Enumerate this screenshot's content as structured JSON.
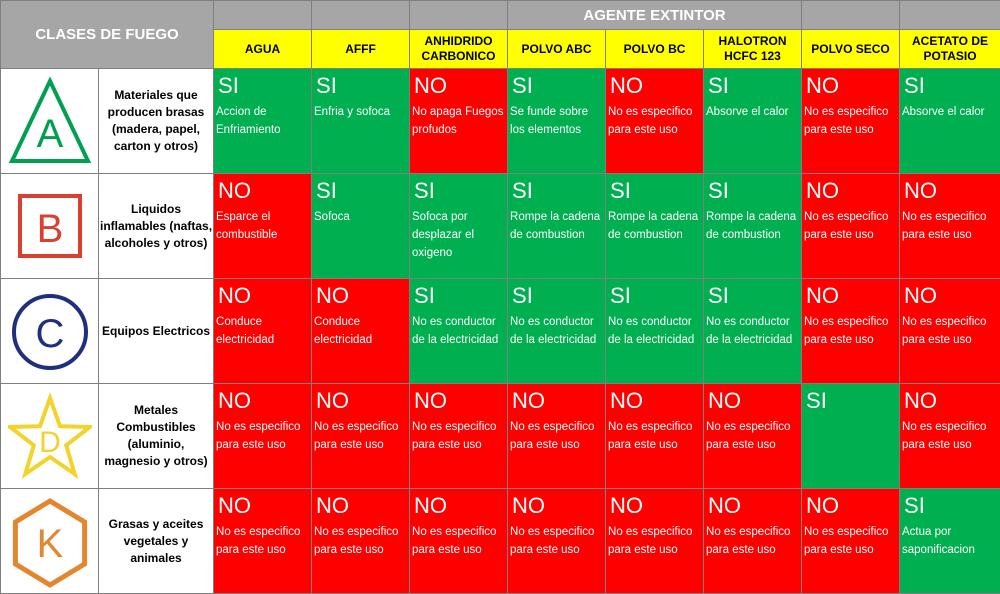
{
  "header": {
    "title": "CLASES DE FUEGO",
    "agent_title": "AGENTE EXTINTOR",
    "agents": [
      "AGUA",
      "AFFF",
      "ANHIDRIDO CARBONICO",
      "POLVO ABC",
      "POLVO BC",
      "HALOTRON HCFC 123",
      "POLVO SECO",
      "ACETATO DE POTASIO"
    ]
  },
  "rows": [
    {
      "letter": "A",
      "icon": "green-triangle-icon",
      "color": "#00a050",
      "description": "Materiales que producen brasas (madera, papel, carton y otros)",
      "cells": [
        {
          "v": "SI",
          "t": "Accion de Enfriamiento"
        },
        {
          "v": "SI",
          "t": "Enfria y sofoca"
        },
        {
          "v": "NO",
          "t": "No apaga Fuegos profudos"
        },
        {
          "v": "SI",
          "t": "Se funde sobre los elementos"
        },
        {
          "v": "NO",
          "t": "No es especifico para este uso"
        },
        {
          "v": "SI",
          "t": "Absorve el calor"
        },
        {
          "v": "NO",
          "t": "No es especifico para este uso"
        },
        {
          "v": "SI",
          "t": "Absorve el calor"
        }
      ]
    },
    {
      "letter": "B",
      "icon": "red-square-icon",
      "color": "#d94030",
      "description": "Liquidos inflamables (naftas, alcoholes y otros)",
      "cells": [
        {
          "v": "NO",
          "t": "Esparce el combustible"
        },
        {
          "v": "SI",
          "t": "Sofoca"
        },
        {
          "v": "SI",
          "t": "Sofoca por desplazar el oxigeno"
        },
        {
          "v": "SI",
          "t": "Rompe la cadena de combustion"
        },
        {
          "v": "SI",
          "t": "Rompe la cadena de combustion"
        },
        {
          "v": "SI",
          "t": "Rompe la cadena de combustion"
        },
        {
          "v": "NO",
          "t": "No es especifico para este uso"
        },
        {
          "v": "NO",
          "t": "No es especifico para este uso"
        }
      ]
    },
    {
      "letter": "C",
      "icon": "blue-circle-icon",
      "color": "#1f2f80",
      "description": "Equipos Electricos",
      "cells": [
        {
          "v": "NO",
          "t": "Conduce electricidad"
        },
        {
          "v": "NO",
          "t": "Conduce electricidad"
        },
        {
          "v": "SI",
          "t": "No es conductor de la electricidad"
        },
        {
          "v": "SI",
          "t": "No es conductor de la electricidad"
        },
        {
          "v": "SI",
          "t": "No es conductor de la electricidad"
        },
        {
          "v": "SI",
          "t": "No es conductor de la electricidad"
        },
        {
          "v": "NO",
          "t": "No es especifico para este uso"
        },
        {
          "v": "NO",
          "t": "No es especifico para este uso"
        }
      ]
    },
    {
      "letter": "D",
      "icon": "yellow-star-icon",
      "color": "#f2d22b",
      "description": "Metales Combustibles (aluminio, magnesio y otros)",
      "cells": [
        {
          "v": "NO",
          "t": "No es especifico para este uso"
        },
        {
          "v": "NO",
          "t": "No es especifico para este uso"
        },
        {
          "v": "NO",
          "t": "No es especifico para este uso"
        },
        {
          "v": "NO",
          "t": "No es especifico para este uso"
        },
        {
          "v": "NO",
          "t": "No es especifico para este uso"
        },
        {
          "v": "NO",
          "t": "No es especifico para este uso"
        },
        {
          "v": "SI",
          "t": ""
        },
        {
          "v": "NO",
          "t": "No es especifico para este uso"
        }
      ]
    },
    {
      "letter": "K",
      "icon": "orange-hexagon-icon",
      "color": "#e2862f",
      "description": "Grasas y aceites vegetales y animales",
      "cells": [
        {
          "v": "NO",
          "t": "No es especifico para este uso"
        },
        {
          "v": "NO",
          "t": "No es especifico para este uso"
        },
        {
          "v": "NO",
          "t": "No es especifico para este uso"
        },
        {
          "v": "NO",
          "t": "No es especifico para este uso"
        },
        {
          "v": "NO",
          "t": "No es especifico para este uso"
        },
        {
          "v": "NO",
          "t": "No es especifico para este uso"
        },
        {
          "v": "NO",
          "t": "No es especifico para este uso"
        },
        {
          "v": "SI",
          "t": "Actua por saponificacion"
        }
      ]
    }
  ],
  "colors": {
    "si": "#00b050",
    "no": "#ff0000",
    "header_gray": "#a6a6a6",
    "agent_yellow": "#ffff00"
  }
}
